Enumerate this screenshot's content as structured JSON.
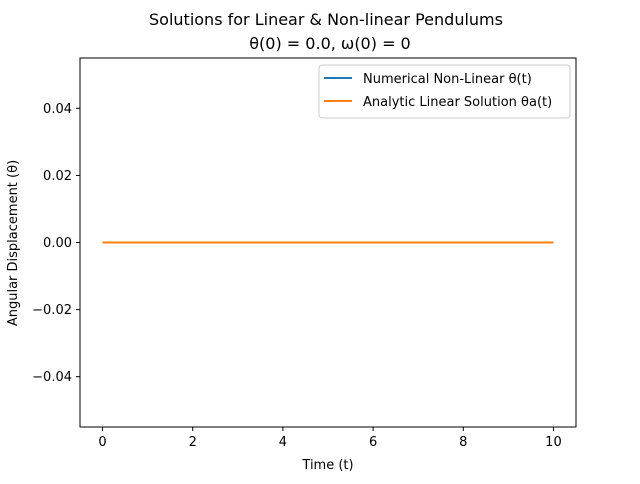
{
  "chart_data": {
    "type": "line",
    "title": "Solutions for Linear & Non-linear Pendulums",
    "subtitle": "θ(0) = 0.0, ω(0) = 0",
    "xlabel": "Time (t)",
    "ylabel": "Angular Displacement (θ)",
    "xlim": [
      -0.5,
      10.5
    ],
    "ylim": [
      -0.055,
      0.055
    ],
    "xticks": [
      0,
      2,
      4,
      6,
      8,
      10
    ],
    "xtick_labels": [
      "0",
      "2",
      "4",
      "6",
      "8",
      "10"
    ],
    "yticks": [
      -0.04,
      -0.02,
      0.0,
      0.02,
      0.04
    ],
    "ytick_labels": [
      "−0.04",
      "−0.02",
      "0.00",
      "0.02",
      "0.04"
    ],
    "grid": false,
    "legend_position": "top-right",
    "series": [
      {
        "name": "Numerical Non-Linear  θ(t)",
        "color": "#1f77b4",
        "x": [
          0,
          10
        ],
        "y": [
          0,
          0
        ]
      },
      {
        "name": "Analytic Linear Solution θa(t)",
        "color": "#ff7f0e",
        "x": [
          0,
          10
        ],
        "y": [
          0,
          0
        ]
      }
    ]
  }
}
